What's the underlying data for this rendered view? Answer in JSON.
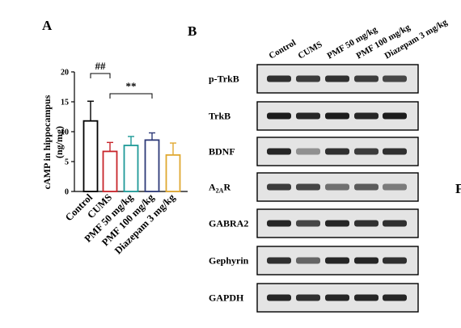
{
  "panels": {
    "a_letter": "A",
    "b_letter": "B",
    "c_letter_partial": "F"
  },
  "chart_data": {
    "type": "bar",
    "title": "",
    "ylabel": "cAMP in hippocampus (ng/mg)",
    "ylabel_line1": "cAMP in hippocampus",
    "ylabel_line2": "(ng/mg)",
    "xlabel": "",
    "ylim": [
      0,
      20
    ],
    "yticks": [
      "0",
      "5",
      "10",
      "15",
      "20"
    ],
    "grid": false,
    "categories": [
      "Control",
      "CUMS",
      "PMF 50 mg/kg",
      "PMF 100 mg/kg",
      "Diazepam 3 mg/kg"
    ],
    "values": [
      11.8,
      6.7,
      7.7,
      8.6,
      6.1
    ],
    "errors": [
      3.3,
      1.5,
      1.5,
      1.2,
      2.0
    ],
    "bar_colors": [
      "#000000",
      "#c8252b",
      "#1f9a98",
      "#2e3a78",
      "#e0a830"
    ],
    "significance": [
      {
        "label": "##",
        "between": [
          "Control",
          "CUMS"
        ]
      },
      {
        "label": "**",
        "between": [
          "CUMS",
          "PMF 100 mg/kg"
        ]
      }
    ]
  },
  "western_blot": {
    "columns": [
      "Control",
      "CUMS",
      "PMF 50 mg/kg",
      "PMF 100 mg/kg",
      "Diazepam 3 mg/kg"
    ],
    "rows": [
      {
        "label": "p-TrkB",
        "intensity": [
          0.85,
          0.8,
          0.85,
          0.8,
          0.75
        ]
      },
      {
        "label": "TrkB",
        "intensity": [
          0.95,
          0.9,
          0.95,
          0.9,
          0.95
        ]
      },
      {
        "label": "BDNF",
        "intensity": [
          0.9,
          0.4,
          0.85,
          0.8,
          0.85
        ]
      },
      {
        "label_main": "A",
        "label_sub": "2A",
        "label_end": "R",
        "intensity": [
          0.8,
          0.75,
          0.55,
          0.65,
          0.5
        ]
      },
      {
        "label": "GABRA2",
        "intensity": [
          0.9,
          0.75,
          0.9,
          0.85,
          0.85
        ]
      },
      {
        "label": "Gephyrin",
        "intensity": [
          0.85,
          0.6,
          0.9,
          0.9,
          0.85
        ]
      },
      {
        "label": "GAPDH",
        "intensity": [
          0.9,
          0.85,
          0.9,
          0.9,
          0.9
        ]
      }
    ]
  }
}
